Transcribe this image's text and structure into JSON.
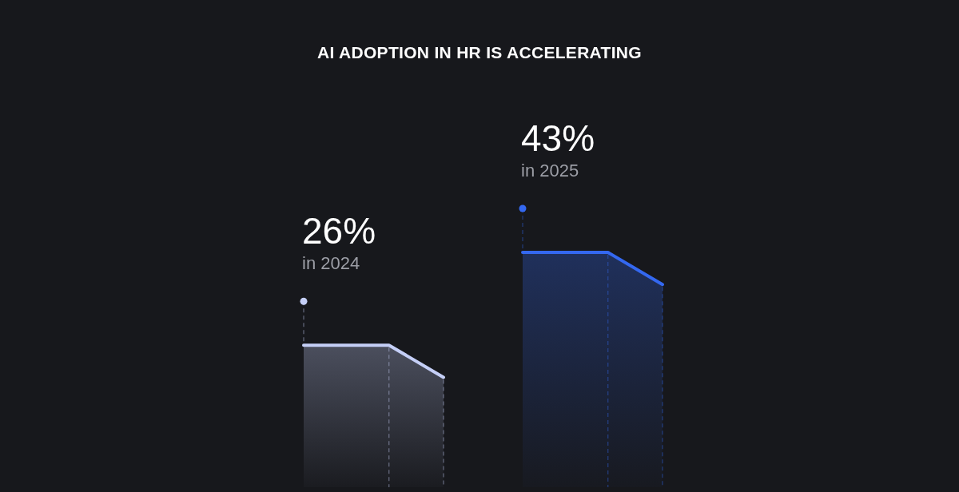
{
  "chart_data": {
    "type": "bar",
    "title": "AI ADOPTION IN HR IS ACCELERATING",
    "categories": [
      null,
      null
    ],
    "values": [
      26,
      43
    ],
    "value_labels": [
      "26%",
      "43%"
    ],
    "colors": [
      "#c5cff7",
      "#3468f0"
    ],
    "annotations": [
      "in 2024",
      "in 2025"
    ]
  }
}
